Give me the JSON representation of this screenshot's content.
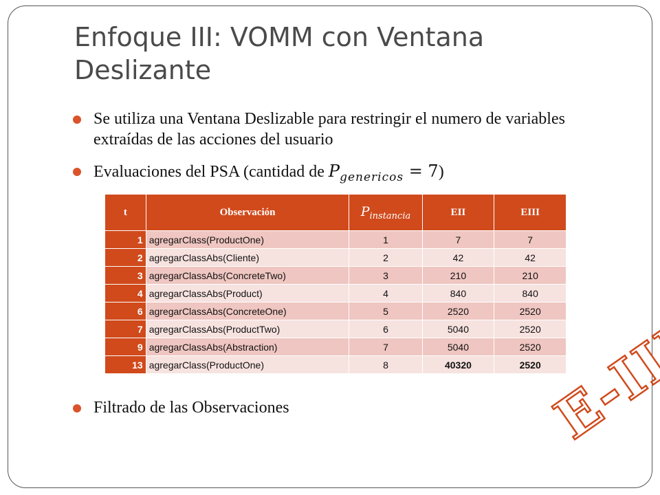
{
  "slide": {
    "title": "Enfoque III: VOMM con Ventana Deslizante",
    "bullets": [
      "Se utiliza una Ventana Deslizable para restringir el numero de variables extraídas de las acciones del usuario",
      "Evaluaciones del PSA (cantidad de ",
      "Filtrado de las Observaciones"
    ],
    "bullet2_math": {
      "symbol": "P",
      "subscript": "genericos",
      "equals": " = 7",
      "suffix": ")"
    },
    "stamp_text": "E-III"
  },
  "table": {
    "headers": {
      "t": "t",
      "observacion": "Observación",
      "p_symbol": "P",
      "p_subscript": "instancia",
      "eii": "EII",
      "eiii": "EIII"
    },
    "rows": [
      {
        "t": "1",
        "obs": "agregarClass(ProductOne)",
        "p": "1",
        "eii": "7",
        "eiii": "7"
      },
      {
        "t": "2",
        "obs": "agregarClassAbs(Cliente)",
        "p": "2",
        "eii": "42",
        "eiii": "42"
      },
      {
        "t": "3",
        "obs": "agregarClassAbs(ConcreteTwo)",
        "p": "3",
        "eii": "210",
        "eiii": "210"
      },
      {
        "t": "4",
        "obs": "agregarClassAbs(Product)",
        "p": "4",
        "eii": "840",
        "eiii": "840"
      },
      {
        "t": "6",
        "obs": "agregarClassAbs(ConcreteOne)",
        "p": "5",
        "eii": "2520",
        "eiii": "2520"
      },
      {
        "t": "7",
        "obs": "agregarClassAbs(ProductTwo)",
        "p": "6",
        "eii": "5040",
        "eiii": "2520"
      },
      {
        "t": "9",
        "obs": "agregarClassAbs(Abstraction)",
        "p": "7",
        "eii": "5040",
        "eiii": "2520"
      },
      {
        "t": "13",
        "obs": "agregarClass(ProductOne)",
        "p": "8",
        "eii": "40320",
        "eiii": "2520"
      }
    ]
  },
  "colors": {
    "accent": "#d04a1c",
    "row_odd": "#efc6c1",
    "row_even": "#f6e2df",
    "title": "#4a4a4a"
  }
}
